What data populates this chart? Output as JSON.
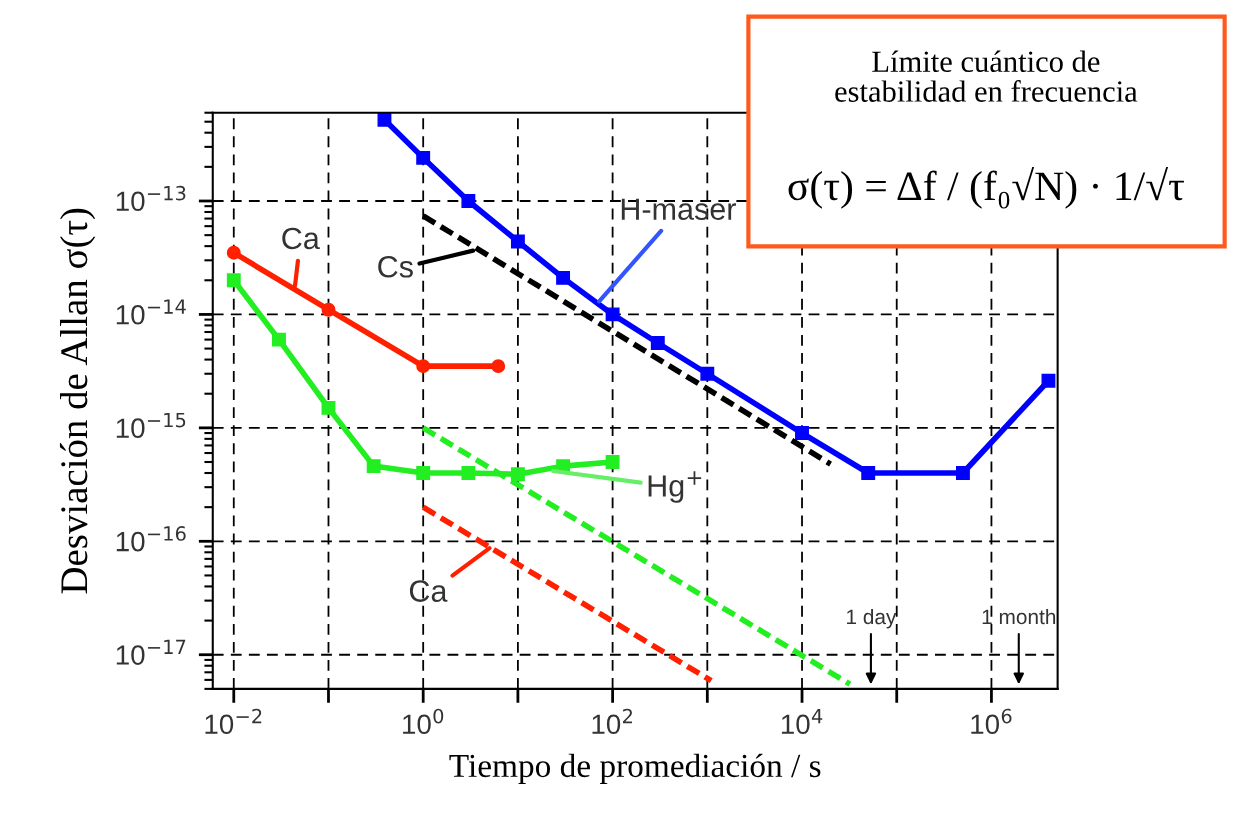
{
  "chart_data": {
    "type": "line",
    "xlabel": "Tiempo de promediación / s",
    "ylabel": "Desviación de Allan σ(τ)",
    "log": "xy",
    "grid": true,
    "xlim": [
      0.006,
      5000000
    ],
    "ylim": [
      5e-18,
      6e-13
    ],
    "xticks": [
      {
        "value": 0.01,
        "label": "10$^{−2}$"
      },
      {
        "value": 0.1,
        "label": null
      },
      {
        "value": 1,
        "label": "10$^{0}$"
      },
      {
        "value": 10,
        "label": null
      },
      {
        "value": 100,
        "label": "10$^{2}$"
      },
      {
        "value": 1000,
        "label": null
      },
      {
        "value": 10000,
        "label": "10$^{4}$"
      },
      {
        "value": 100000,
        "label": null
      },
      {
        "value": 1000000,
        "label": "10$^{6}$"
      }
    ],
    "yticks": [
      {
        "value": 1e-17,
        "label": "10$^{−17}$"
      },
      {
        "value": 1e-16,
        "label": "10$^{−16}$"
      },
      {
        "value": 1e-15,
        "label": "10$^{−15}$"
      },
      {
        "value": 1e-14,
        "label": "10$^{−14}$"
      },
      {
        "value": 1e-13,
        "label": "10$^{−13}$"
      }
    ],
    "series": [
      {
        "color": "#0000ff",
        "marker": "square",
        "line_style": "solid",
        "x": [
          0.39,
          1,
          3,
          10,
          30,
          100,
          300,
          1000,
          10000,
          50000,
          500000,
          4000000
        ],
        "values": [
          5.2e-13,
          2.4e-13,
          1e-13,
          4.4e-14,
          2.1e-14,
          1e-14,
          5.6e-15,
          3e-15,
          9e-16,
          4e-16,
          4e-16,
          2.6e-15
        ]
      },
      {
        "color": "#000000",
        "marker": "none",
        "line_style": "dashed",
        "x": [
          1,
          20000
        ],
        "values": [
          7.4e-14,
          4.8e-16
        ]
      },
      {
        "color": "#ff2000",
        "marker": "circle",
        "line_style": "solid",
        "x": [
          0.01,
          0.1,
          1,
          6.2
        ],
        "values": [
          3.5e-14,
          1.1e-14,
          3.5e-15,
          3.5e-15
        ]
      },
      {
        "color": "#22ee22",
        "marker": "square",
        "line_style": "solid",
        "x": [
          0.01,
          0.03,
          0.1,
          0.3,
          1,
          3,
          10,
          30,
          100
        ],
        "values": [
          2e-14,
          6e-15,
          1.5e-15,
          4.6e-16,
          4e-16,
          4e-16,
          3.9e-16,
          4.6e-16,
          5e-16
        ]
      },
      {
        "color": "#22ee22",
        "marker": "none",
        "line_style": "dashed",
        "x": [
          1,
          32000
        ],
        "values": [
          1e-15,
          5.5e-18
        ]
      },
      {
        "color": "#ff2000",
        "marker": "none",
        "line_style": "dashed",
        "x": [
          1,
          1100
        ],
        "values": [
          2e-16,
          5.9e-18
        ]
      }
    ],
    "annotations": [
      {
        "text": "Ca",
        "x": 0.044,
        "y": 1.7e-14
      },
      {
        "text": "Cs",
        "x": 3.6,
        "y": 3.7e-14
      },
      {
        "text": "H-maser",
        "x": 69,
        "y": 1.25e-14
      },
      {
        "text": "Hg$^{+}$",
        "x": 22,
        "y": 4.2e-16
      },
      {
        "text": "Ca",
        "x": 5.3,
        "y": 9e-17
      },
      "1 day",
      "1 month",
      "Límite cuántico de\nestabilidad en frecuencia",
      "σ(τ) = Δf / (f₀√N) · 1/√τ"
    ],
    "legend": false
  }
}
